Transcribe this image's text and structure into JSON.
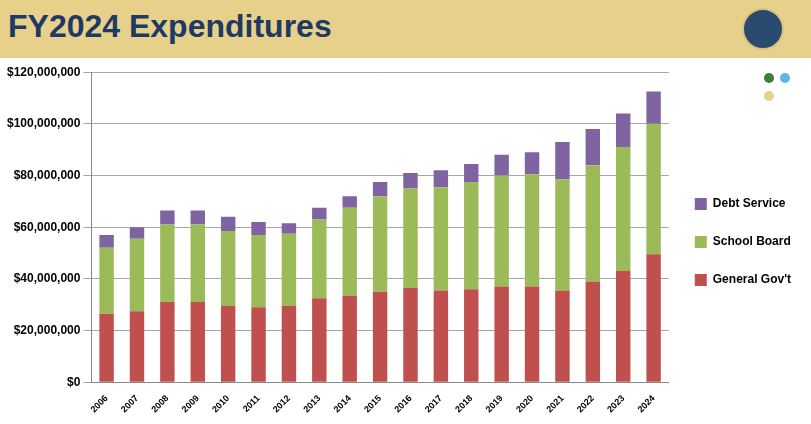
{
  "chart_data": {
    "type": "bar",
    "title": "FY2024 Expenditures",
    "categories": [
      "2006",
      "2007",
      "2008",
      "2009",
      "2010",
      "2011",
      "2012",
      "2013",
      "2014",
      "2015",
      "2016",
      "2017",
      "2018",
      "2019",
      "2020",
      "2021",
      "2022",
      "2023",
      "2024"
    ],
    "series": [
      {
        "name": "General Gov't",
        "color": "#c0504d",
        "values": [
          26500000,
          27500000,
          31000000,
          31000000,
          29500000,
          29000000,
          29500000,
          32500000,
          33500000,
          35000000,
          36500000,
          35500000,
          36000000,
          37000000,
          37000000,
          35500000,
          39000000,
          43000000,
          49500000
        ]
      },
      {
        "name": "School Board",
        "color": "#9bbb59",
        "values": [
          25500000,
          28000000,
          30000000,
          30000000,
          29000000,
          28000000,
          28000000,
          30500000,
          34000000,
          37000000,
          38500000,
          40000000,
          41500000,
          43000000,
          43500000,
          43000000,
          45000000,
          48000000,
          50500000
        ]
      },
      {
        "name": "Debt Service",
        "color": "#8064a2",
        "values": [
          5000000,
          4500000,
          5500000,
          5500000,
          5500000,
          5000000,
          4000000,
          4500000,
          4500000,
          5500000,
          6000000,
          6500000,
          7000000,
          8000000,
          8500000,
          14500000,
          14000000,
          13000000,
          12500000
        ]
      }
    ],
    "stacked": true,
    "ylim": [
      0,
      120000000
    ],
    "yticks": [
      {
        "value": 0,
        "label": "$0"
      },
      {
        "value": 20000000,
        "label": "$20,000,000"
      },
      {
        "value": 40000000,
        "label": "$40,000,000"
      },
      {
        "value": 60000000,
        "label": "$60,000,000"
      },
      {
        "value": 80000000,
        "label": "$80,000,000"
      },
      {
        "value": 100000000,
        "label": "$100,000,000"
      },
      {
        "value": 120000000,
        "label": "$120,000,000"
      }
    ],
    "grid": true,
    "legend": "right"
  }
}
